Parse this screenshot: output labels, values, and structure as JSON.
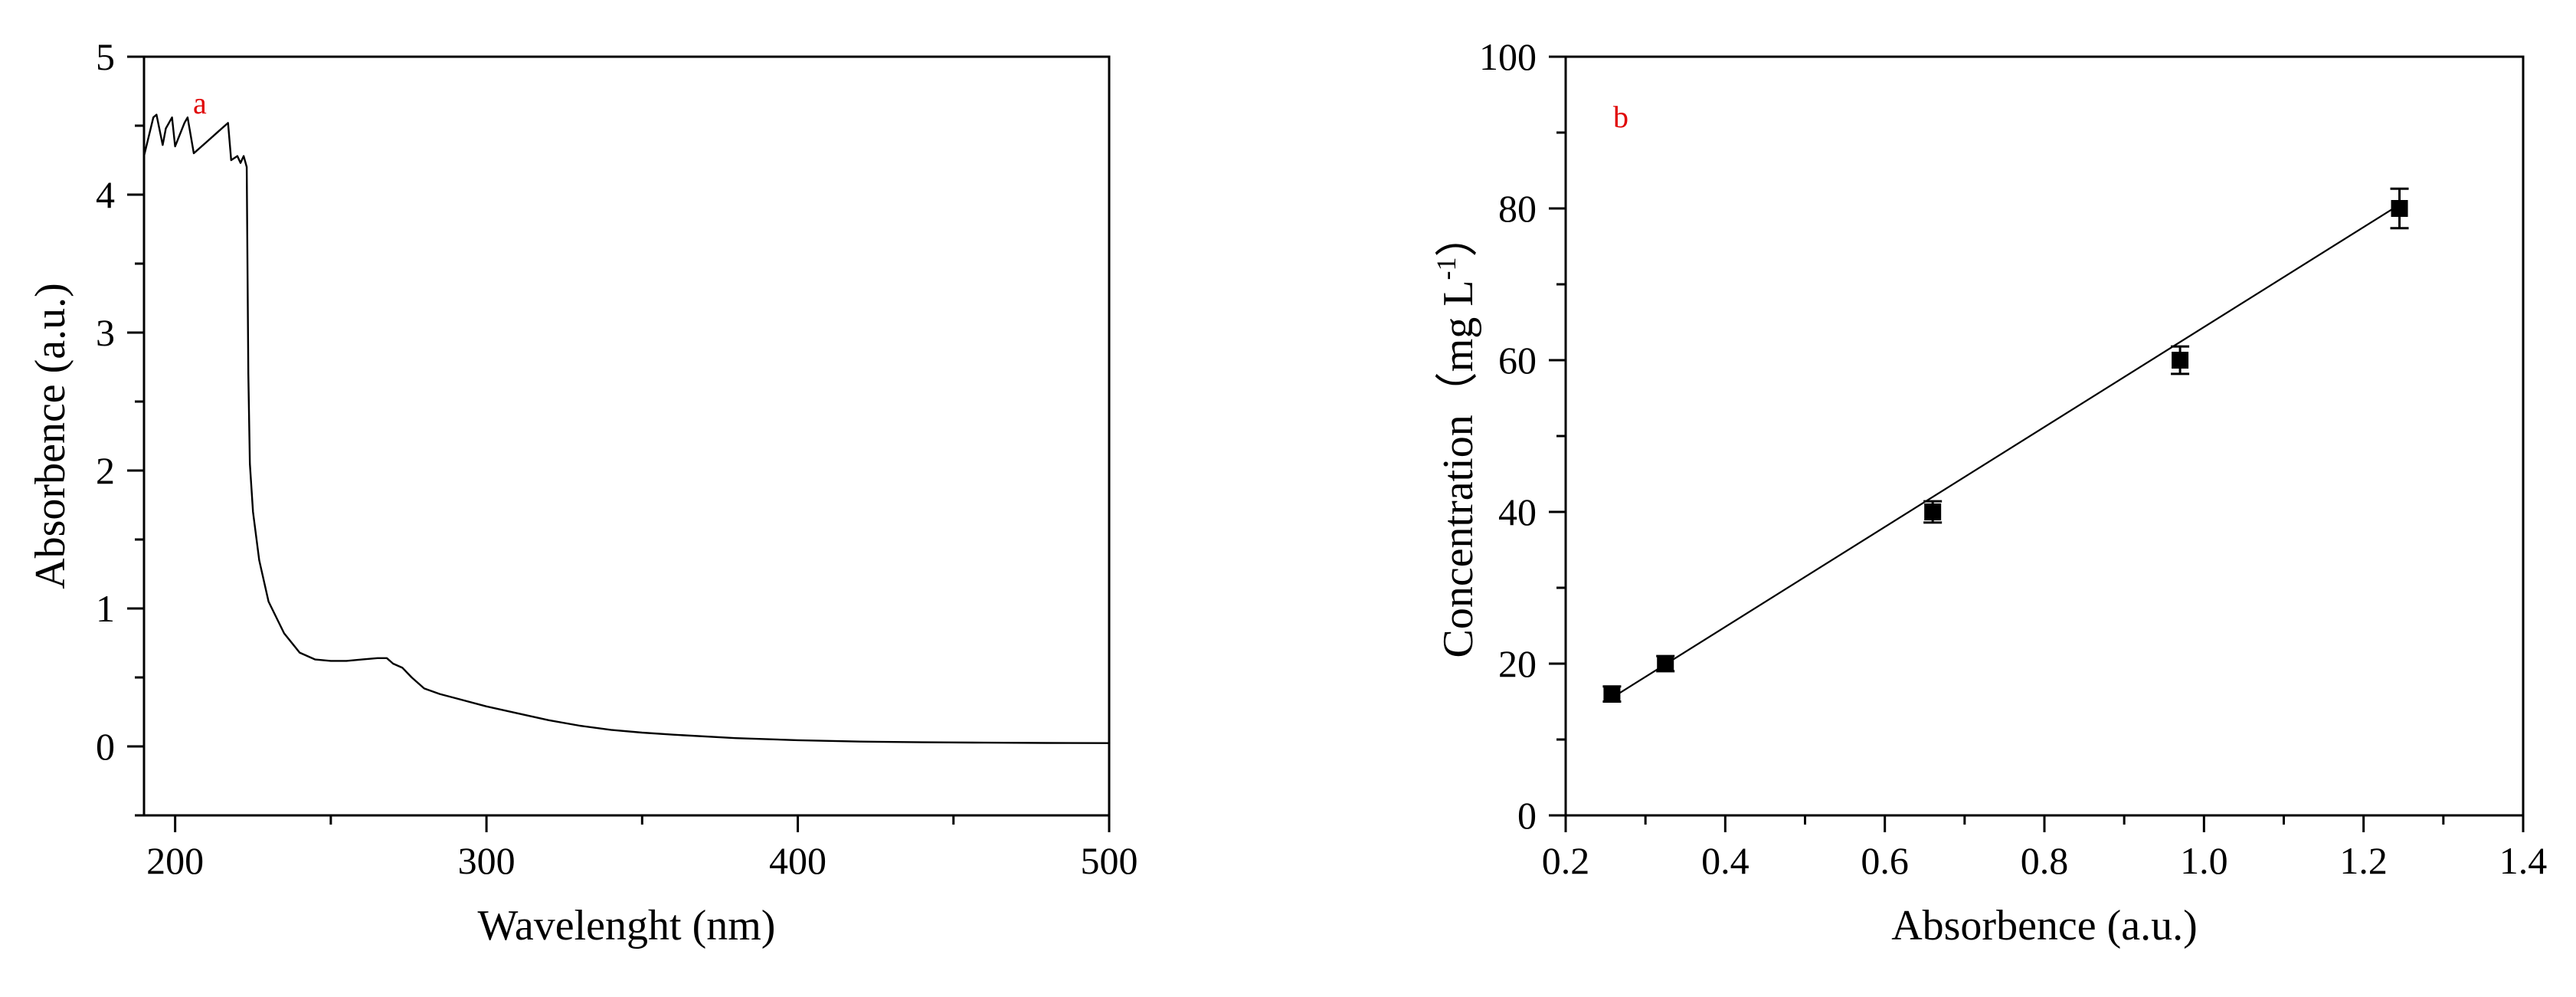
{
  "chart_data": [
    {
      "type": "line",
      "panel_label": "a",
      "xlabel": "Wavelenght (nm)",
      "ylabel": "Absorbence (a.u.)",
      "xlim": [
        190,
        500
      ],
      "ylim": [
        -0.5,
        5
      ],
      "x_ticks": [
        200,
        300,
        400,
        500
      ],
      "y_ticks": [
        0,
        1,
        2,
        3,
        4,
        5
      ],
      "grid": false,
      "series": [
        {
          "x": [
            190,
            193,
            194,
            196,
            197,
            199,
            200,
            203,
            204,
            206,
            210,
            214,
            217,
            218,
            220,
            221,
            222,
            223,
            223.5,
            224,
            225,
            227,
            230,
            235,
            240,
            245,
            250,
            255,
            260,
            265,
            268,
            270,
            273,
            276,
            280,
            285,
            290,
            300,
            310,
            320,
            330,
            340,
            350,
            360,
            380,
            400,
            420,
            440,
            460,
            480,
            500
          ],
          "y": [
            4.28,
            4.56,
            4.58,
            4.36,
            4.48,
            4.56,
            4.35,
            4.52,
            4.56,
            4.3,
            4.38,
            4.46,
            4.52,
            4.25,
            4.28,
            4.23,
            4.28,
            4.2,
            2.7,
            2.05,
            1.7,
            1.35,
            1.05,
            0.82,
            0.68,
            0.63,
            0.62,
            0.62,
            0.63,
            0.64,
            0.64,
            0.6,
            0.57,
            0.5,
            0.42,
            0.38,
            0.35,
            0.29,
            0.24,
            0.19,
            0.15,
            0.12,
            0.1,
            0.085,
            0.06,
            0.045,
            0.035,
            0.03,
            0.027,
            0.025,
            0.024
          ]
        }
      ]
    },
    {
      "type": "scatter",
      "panel_label": "b",
      "xlabel": "Absorbence (a.u.)",
      "ylabel": "Concentration〔mg L⁻¹〕",
      "ylabel_parts": {
        "main": "Concentration（mg L",
        "sup": "-1",
        "end": "）"
      },
      "xlim": [
        0.2,
        1.4
      ],
      "ylim": [
        0,
        100
      ],
      "x_ticks": [
        0.2,
        0.4,
        0.6,
        0.8,
        1.0,
        1.2,
        1.4
      ],
      "x_tick_labels": [
        "0.2",
        "0.4",
        "0.6",
        "0.8",
        "1.0",
        "1.2",
        "1.4"
      ],
      "y_ticks": [
        0,
        20,
        40,
        60,
        80,
        100
      ],
      "grid": false,
      "series": [
        {
          "x": [
            0.258,
            0.325,
            0.66,
            0.97,
            1.245
          ],
          "y": [
            16,
            20,
            40,
            60,
            80
          ],
          "y_err": [
            1.0,
            1.0,
            1.4,
            1.8,
            2.6
          ]
        }
      ],
      "fit_line": {
        "x": [
          0.255,
          1.245
        ],
        "y": [
          15.3,
          80.5
        ]
      }
    }
  ]
}
